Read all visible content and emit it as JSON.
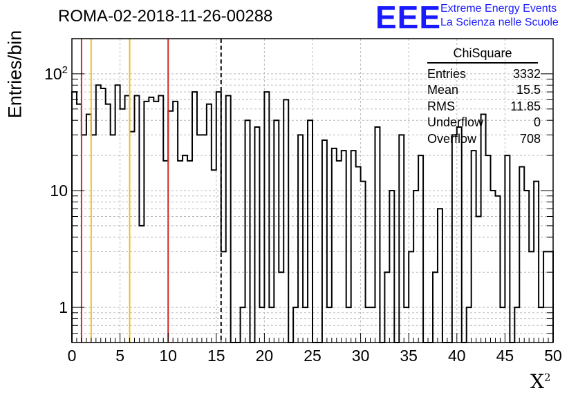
{
  "chart_data": {
    "type": "histogram",
    "title": "ROMA-02-2018-11-26-00288",
    "xlabel": "X",
    "xlabel_superscript": "2",
    "ylabel": "Entries/bin",
    "xlim": [
      0,
      50
    ],
    "ylim": [
      0.5,
      200
    ],
    "yscale": "log",
    "grid": true,
    "bin_width": 0.5,
    "x_ticks": [
      "0",
      "5",
      "10",
      "15",
      "20",
      "25",
      "30",
      "35",
      "40",
      "45",
      "50"
    ],
    "y_ticks": [
      {
        "base": "10",
        "exp": "2",
        "value": 100
      },
      {
        "base": "10",
        "exp": "",
        "value": 10
      },
      {
        "base": "1",
        "exp": "",
        "value": 1
      }
    ],
    "values": [
      70,
      55,
      30,
      45,
      30,
      80,
      75,
      55,
      30,
      80,
      50,
      65,
      32,
      65,
      5,
      58,
      63,
      58,
      65,
      18,
      48,
      58,
      18,
      20,
      18,
      70,
      30,
      30,
      55,
      15,
      70,
      3,
      65,
      0,
      0,
      1,
      40,
      0,
      35,
      1,
      70,
      1,
      40,
      2,
      60,
      0,
      1,
      30,
      1,
      40,
      0,
      0,
      27,
      1,
      23,
      18,
      22,
      1,
      22,
      16,
      12,
      1,
      1,
      35,
      0,
      2,
      10,
      0,
      30,
      1,
      3,
      10,
      20,
      0,
      0,
      2,
      7,
      0,
      0,
      30,
      35,
      0,
      1,
      22,
      6,
      45,
      20,
      10,
      9,
      1,
      20,
      0,
      1,
      16,
      10,
      3,
      12,
      1,
      3,
      3
    ],
    "reference_lines": [
      {
        "x": 1,
        "color": "#d42a2a",
        "style": "solid"
      },
      {
        "x": 2,
        "color": "#f0c020",
        "style": "solid"
      },
      {
        "x": 6,
        "color": "#f0c020",
        "style": "solid"
      },
      {
        "x": 10,
        "color": "#d42a2a",
        "style": "solid"
      },
      {
        "x": 15.5,
        "color": "#000000",
        "style": "dashed"
      }
    ],
    "stats": {
      "name": "ChiSquare",
      "rows": [
        {
          "label": "Entries",
          "value": "3332"
        },
        {
          "label": "Mean",
          "value": "15.5"
        },
        {
          "label": "RMS",
          "value": "11.85"
        },
        {
          "label": "Underflow",
          "value": "0"
        },
        {
          "label": "Overflow",
          "value": "708"
        }
      ]
    }
  },
  "logo": {
    "text": "EEE",
    "line1": "Extreme Energy Events",
    "line2": "La Scienza nelle Scuole",
    "color": "#1a1aff"
  }
}
